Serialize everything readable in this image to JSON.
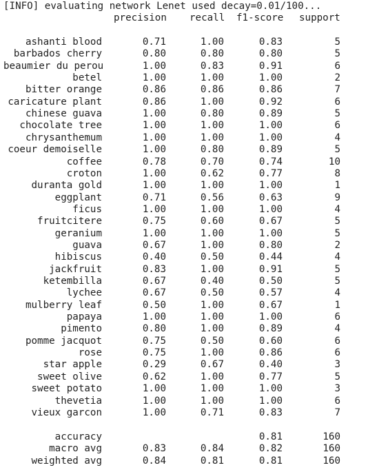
{
  "info_line": "[INFO] evaluating network Lenet used decay=0.01/100...",
  "headers": {
    "precision": "precision",
    "recall": "recall",
    "f1": "f1-score",
    "support": "support"
  },
  "rows": [
    {
      "label": "ashanti blood",
      "precision": "0.71",
      "recall": "1.00",
      "f1": "0.83",
      "support": "5"
    },
    {
      "label": "barbados cherry",
      "precision": "0.80",
      "recall": "0.80",
      "f1": "0.80",
      "support": "5"
    },
    {
      "label": "beaumier du perou",
      "precision": "1.00",
      "recall": "0.83",
      "f1": "0.91",
      "support": "6"
    },
    {
      "label": "betel",
      "precision": "1.00",
      "recall": "1.00",
      "f1": "1.00",
      "support": "2"
    },
    {
      "label": "bitter orange",
      "precision": "0.86",
      "recall": "0.86",
      "f1": "0.86",
      "support": "7"
    },
    {
      "label": "caricature plant",
      "precision": "0.86",
      "recall": "1.00",
      "f1": "0.92",
      "support": "6"
    },
    {
      "label": "chinese guava",
      "precision": "1.00",
      "recall": "0.80",
      "f1": "0.89",
      "support": "5"
    },
    {
      "label": "chocolate tree",
      "precision": "1.00",
      "recall": "1.00",
      "f1": "1.00",
      "support": "6"
    },
    {
      "label": "chrysanthemum",
      "precision": "1.00",
      "recall": "1.00",
      "f1": "1.00",
      "support": "4"
    },
    {
      "label": "coeur demoiselle",
      "precision": "1.00",
      "recall": "0.80",
      "f1": "0.89",
      "support": "5"
    },
    {
      "label": "coffee",
      "precision": "0.78",
      "recall": "0.70",
      "f1": "0.74",
      "support": "10"
    },
    {
      "label": "croton",
      "precision": "1.00",
      "recall": "0.62",
      "f1": "0.77",
      "support": "8"
    },
    {
      "label": "duranta gold",
      "precision": "1.00",
      "recall": "1.00",
      "f1": "1.00",
      "support": "1"
    },
    {
      "label": "eggplant",
      "precision": "0.71",
      "recall": "0.56",
      "f1": "0.63",
      "support": "9"
    },
    {
      "label": "ficus",
      "precision": "1.00",
      "recall": "1.00",
      "f1": "1.00",
      "support": "4"
    },
    {
      "label": "fruitcitere",
      "precision": "0.75",
      "recall": "0.60",
      "f1": "0.67",
      "support": "5"
    },
    {
      "label": "geranium",
      "precision": "1.00",
      "recall": "1.00",
      "f1": "1.00",
      "support": "5"
    },
    {
      "label": "guava",
      "precision": "0.67",
      "recall": "1.00",
      "f1": "0.80",
      "support": "2"
    },
    {
      "label": "hibiscus",
      "precision": "0.40",
      "recall": "0.50",
      "f1": "0.44",
      "support": "4"
    },
    {
      "label": "jackfruit",
      "precision": "0.83",
      "recall": "1.00",
      "f1": "0.91",
      "support": "5"
    },
    {
      "label": "ketembilla",
      "precision": "0.67",
      "recall": "0.40",
      "f1": "0.50",
      "support": "5"
    },
    {
      "label": "lychee",
      "precision": "0.67",
      "recall": "0.50",
      "f1": "0.57",
      "support": "4"
    },
    {
      "label": "mulberry leaf",
      "precision": "0.50",
      "recall": "1.00",
      "f1": "0.67",
      "support": "1"
    },
    {
      "label": "papaya",
      "precision": "1.00",
      "recall": "1.00",
      "f1": "1.00",
      "support": "6"
    },
    {
      "label": "pimento",
      "precision": "0.80",
      "recall": "1.00",
      "f1": "0.89",
      "support": "4"
    },
    {
      "label": "pomme jacquot",
      "precision": "0.75",
      "recall": "0.50",
      "f1": "0.60",
      "support": "6"
    },
    {
      "label": "rose",
      "precision": "0.75",
      "recall": "1.00",
      "f1": "0.86",
      "support": "6"
    },
    {
      "label": "star apple",
      "precision": "0.29",
      "recall": "0.67",
      "f1": "0.40",
      "support": "3"
    },
    {
      "label": "sweet olive",
      "precision": "0.62",
      "recall": "1.00",
      "f1": "0.77",
      "support": "5"
    },
    {
      "label": "sweet potato",
      "precision": "1.00",
      "recall": "1.00",
      "f1": "1.00",
      "support": "3"
    },
    {
      "label": "thevetia",
      "precision": "1.00",
      "recall": "1.00",
      "f1": "1.00",
      "support": "6"
    },
    {
      "label": "vieux garcon",
      "precision": "1.00",
      "recall": "0.71",
      "f1": "0.83",
      "support": "7"
    }
  ],
  "summary": [
    {
      "label": "accuracy",
      "precision": "",
      "recall": "",
      "f1": "0.81",
      "support": "160"
    },
    {
      "label": "macro avg",
      "precision": "0.83",
      "recall": "0.84",
      "f1": "0.82",
      "support": "160"
    },
    {
      "label": "weighted avg",
      "precision": "0.84",
      "recall": "0.81",
      "f1": "0.81",
      "support": "160"
    }
  ]
}
